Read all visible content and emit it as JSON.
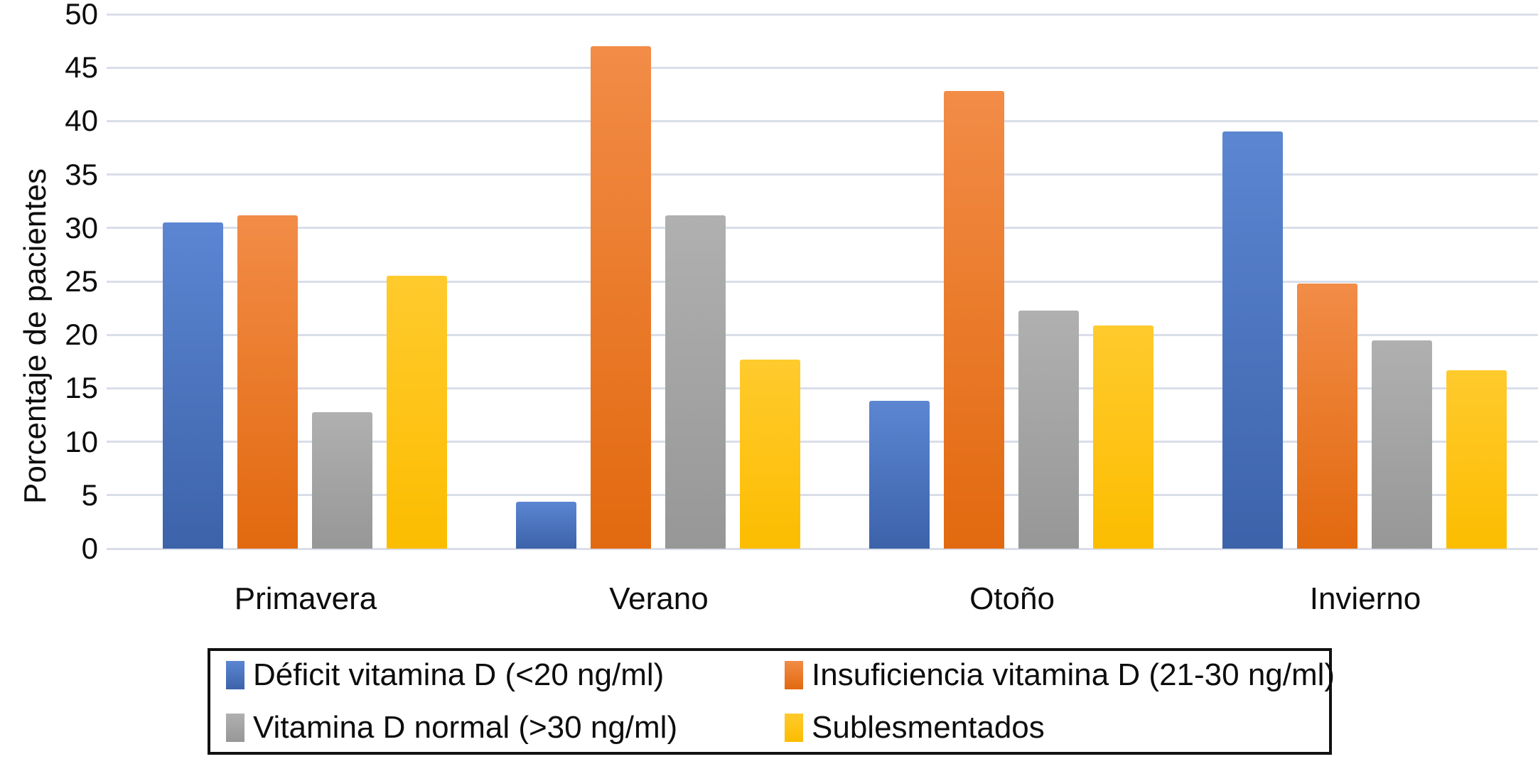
{
  "chart_data": {
    "type": "bar",
    "ylabel": "Porcentaje de pacientes",
    "ylim": [
      0,
      50
    ],
    "yticks": [
      0,
      5,
      10,
      15,
      20,
      25,
      30,
      35,
      40,
      45,
      50
    ],
    "grid": "horizontal",
    "legend_position": "bottom-box-2x2",
    "categories": [
      "Primavera",
      "Verano",
      "Otoño",
      "Invierno"
    ],
    "series": [
      {
        "name": "Déficit vitamina D (<20 ng/ml)",
        "color": "#4472C4",
        "color_top": "#5c86d2",
        "color_bottom": "#3c63aa",
        "values": [
          30.5,
          4.4,
          13.8,
          39.0
        ]
      },
      {
        "name": "Insuficiencia vitamina D (21-30 ng/ml)",
        "color": "#ED7D31",
        "color_top": "#f28c47",
        "color_bottom": "#e2690f",
        "values": [
          31.2,
          47.0,
          42.8,
          24.8
        ]
      },
      {
        "name": "Vitamina D normal (>30 ng/ml)",
        "color": "#A5A5A5",
        "color_top": "#b0b0b0",
        "color_bottom": "#979797",
        "values": [
          12.8,
          31.2,
          22.3,
          19.5
        ]
      },
      {
        "name": "Sublesmentados",
        "color": "#FFC000",
        "color_top": "#ffca2d",
        "color_bottom": "#fcbd00",
        "values": [
          25.5,
          17.7,
          20.9,
          16.7
        ]
      }
    ]
  }
}
